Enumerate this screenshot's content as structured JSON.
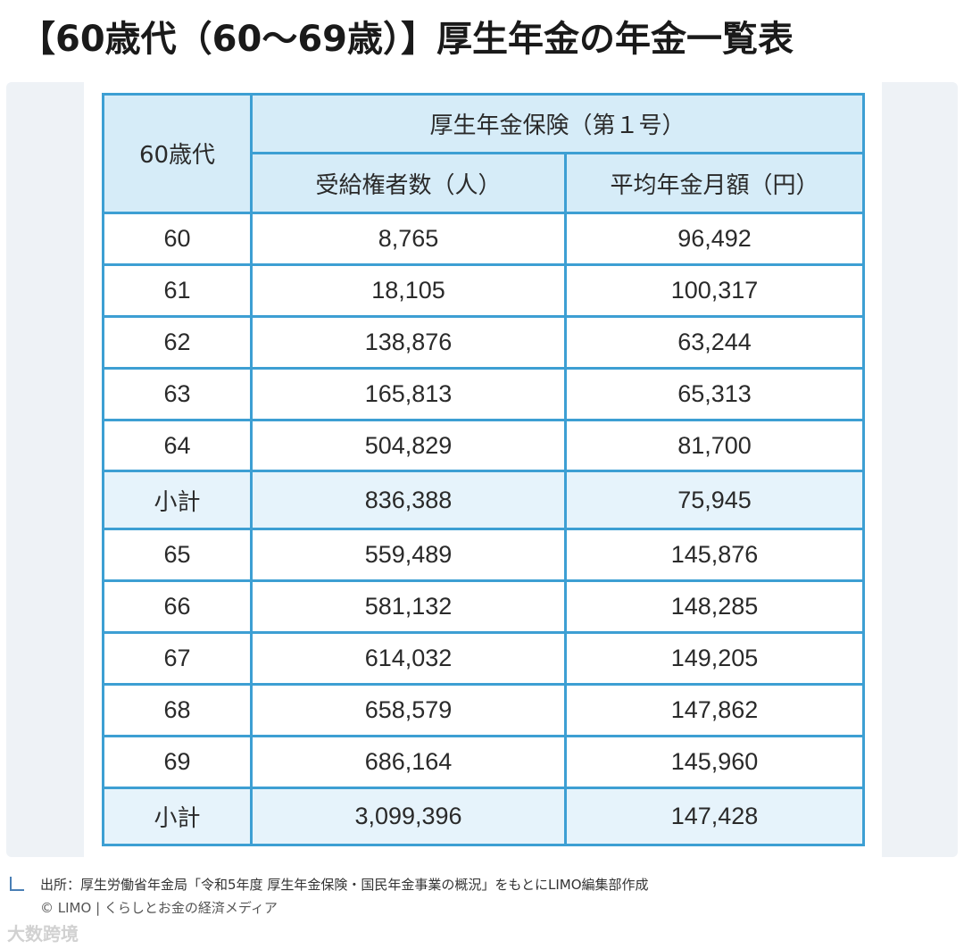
{
  "title": "【60歳代（60〜69歳）】厚生年金の年金一覧表",
  "table": {
    "age_header": "60歳代",
    "group_header": "厚生年金保険（第１号）",
    "col_recipients": "受給権者数（人）",
    "col_avg_amount": "平均年金月額（円）",
    "rows": [
      {
        "age": "60",
        "recipients": "8,765",
        "avg": "96,492"
      },
      {
        "age": "61",
        "recipients": "18,105",
        "avg": "100,317"
      },
      {
        "age": "62",
        "recipients": "138,876",
        "avg": "63,244"
      },
      {
        "age": "63",
        "recipients": "165,813",
        "avg": "65,313"
      },
      {
        "age": "64",
        "recipients": "504,829",
        "avg": "81,700"
      },
      {
        "age": "小計",
        "recipients": "836,388",
        "avg": "75,945"
      },
      {
        "age": "65",
        "recipients": "559,489",
        "avg": "145,876"
      },
      {
        "age": "66",
        "recipients": "581,132",
        "avg": "148,285"
      },
      {
        "age": "67",
        "recipients": "614,032",
        "avg": "149,205"
      },
      {
        "age": "68",
        "recipients": "658,579",
        "avg": "147,862"
      },
      {
        "age": "69",
        "recipients": "686,164",
        "avg": "145,960"
      },
      {
        "age": "小計",
        "recipients": "3,099,396",
        "avg": "147,428"
      }
    ]
  },
  "source": "出所：厚生労働省年金局「令和5年度 厚生年金保険・国民年金事業の概況」をもとにLIMO編集部作成",
  "copyright": "© LIMO | くらしとお金の経済メディア",
  "watermark": "大数跨境",
  "colors": {
    "border": "#3d9fd3",
    "header_bg": "#d6ecf8"
  }
}
